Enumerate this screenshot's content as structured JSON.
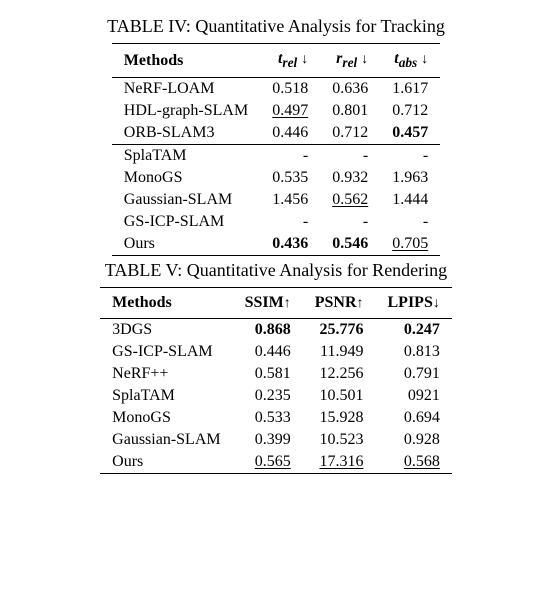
{
  "table1": {
    "caption_label": "TABLE IV:",
    "caption_text": "Quantitative Analysis for Tracking",
    "header": {
      "methods": "Methods",
      "col1_sym": "t",
      "col1_sub": "rel",
      "col2_sym": "r",
      "col2_sub": "rel",
      "col3_sym": "t",
      "col3_sub": "abs",
      "down": "↓"
    },
    "rows": [
      {
        "name": "NeRF-LOAM",
        "v1": "0.518",
        "s1": "",
        "v2": "0.636",
        "s2": "",
        "v3": "1.617",
        "s3": ""
      },
      {
        "name": "HDL-graph-SLAM",
        "v1": "0.497",
        "s1": "under",
        "v2": "0.801",
        "s2": "",
        "v3": "0.712",
        "s3": ""
      },
      {
        "name": "ORB-SLAM3",
        "v1": "0.446",
        "s1": "",
        "v2": "0.712",
        "s2": "",
        "v3": "0.457",
        "s3": "bold"
      },
      {
        "name": "SplaTAM",
        "v1": "-",
        "s1": "",
        "v2": "-",
        "s2": "",
        "v3": "-",
        "s3": ""
      },
      {
        "name": "MonoGS",
        "v1": "0.535",
        "s1": "",
        "v2": "0.932",
        "s2": "",
        "v3": "1.963",
        "s3": ""
      },
      {
        "name": "Gaussian-SLAM",
        "v1": "1.456",
        "s1": "",
        "v2": "0.562",
        "s2": "under",
        "v3": "1.444",
        "s3": ""
      },
      {
        "name": "GS-ICP-SLAM",
        "v1": "-",
        "s1": "",
        "v2": "-",
        "s2": "",
        "v3": "-",
        "s3": ""
      },
      {
        "name": "Ours",
        "v1": "0.436",
        "s1": "bold",
        "v2": "0.546",
        "s2": "bold",
        "v3": "0.705",
        "s3": "under"
      }
    ],
    "section_break_after_index": 2
  },
  "table2": {
    "caption_label": "TABLE V:",
    "caption_text": "Quantitative Analysis for Rendering",
    "header": {
      "methods": "Methods",
      "col1": "SSIM",
      "col2": "PSNR",
      "col3": "LPIPS",
      "up": "↑",
      "down": "↓"
    },
    "rows": [
      {
        "name": "3DGS",
        "v1": "0.868",
        "s1": "bold",
        "v2": "25.776",
        "s2": "bold",
        "v3": "0.247",
        "s3": "bold"
      },
      {
        "name": "GS-ICP-SLAM",
        "v1": "0.446",
        "s1": "",
        "v2": "11.949",
        "s2": "",
        "v3": "0.813",
        "s3": ""
      },
      {
        "name": "NeRF++",
        "v1": "0.581",
        "s1": "",
        "v2": "12.256",
        "s2": "",
        "v3": "0.791",
        "s3": ""
      },
      {
        "name": "SplaTAM",
        "v1": "0.235",
        "s1": "",
        "v2": "10.501",
        "s2": "",
        "v3": "0921",
        "s3": ""
      },
      {
        "name": "MonoGS",
        "v1": "0.533",
        "s1": "",
        "v2": "15.928",
        "s2": "",
        "v3": "0.694",
        "s3": ""
      },
      {
        "name": "Gaussian-SLAM",
        "v1": "0.399",
        "s1": "",
        "v2": "10.523",
        "s2": "",
        "v3": "0.928",
        "s3": ""
      },
      {
        "name": "Ours",
        "v1": "0.565",
        "s1": "under",
        "v2": "17.316",
        "s2": "under",
        "v3": "0.568",
        "s3": "under"
      }
    ]
  },
  "style": {
    "bg": "#ffffff",
    "fg": "#000000",
    "rule_color": "#000000",
    "caption_fontsize": 18,
    "body_fontsize": 16
  }
}
